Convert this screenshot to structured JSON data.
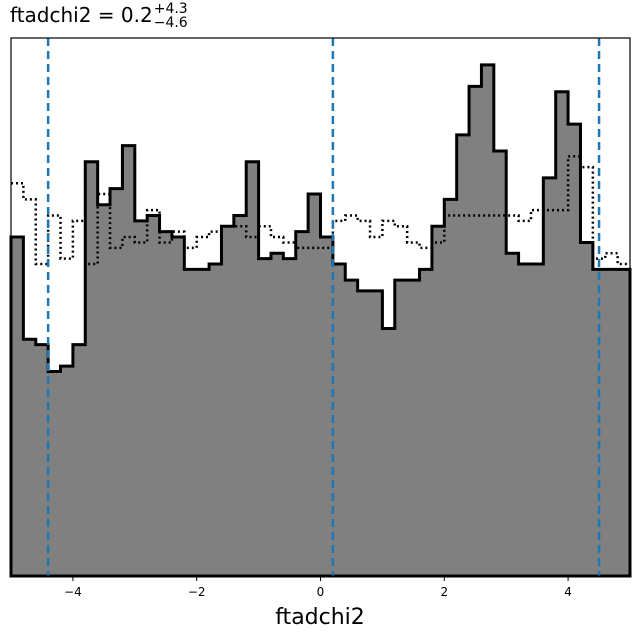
{
  "chart_data": {
    "type": "histogram",
    "title": {
      "text": "ftadchi2 = 0.2",
      "superscript": "+4.3",
      "subscript": "−4.6"
    },
    "xlabel": "ftadchi2",
    "ylabel": "",
    "xlim": [
      -5.0,
      5.0
    ],
    "ylim": [
      0,
      1.0
    ],
    "xticks": [
      -4,
      -2,
      0,
      2,
      4
    ],
    "xtick_labels": [
      "−4",
      "−2",
      "0",
      "2",
      "4"
    ],
    "show_yticks": false,
    "grid": false,
    "bin_edges": [
      -5.0,
      -4.8,
      -4.6,
      -4.4,
      -4.2,
      -4.0,
      -3.8,
      -3.6,
      -3.4,
      -3.2,
      -3.0,
      -2.8,
      -2.6,
      -2.4,
      -2.2,
      -2.0,
      -1.8,
      -1.6,
      -1.4,
      -1.2,
      -1.0,
      -0.8,
      -0.6,
      -0.4,
      -0.2,
      0.0,
      0.2,
      0.4,
      0.6,
      0.8,
      1.0,
      1.2,
      1.4,
      1.6,
      1.8,
      2.0,
      2.2,
      2.4,
      2.6,
      2.8,
      3.0,
      3.2,
      3.4,
      3.6,
      3.8,
      4.0,
      4.2,
      4.4,
      4.6,
      4.8,
      5.0
    ],
    "series": [
      {
        "style": "filled-step",
        "fill": "#808080",
        "edge": "#000000",
        "values": [
          0.63,
          0.44,
          0.43,
          0.38,
          0.39,
          0.43,
          0.77,
          0.69,
          0.72,
          0.8,
          0.66,
          0.67,
          0.64,
          0.63,
          0.57,
          0.57,
          0.58,
          0.65,
          0.67,
          0.77,
          0.59,
          0.6,
          0.59,
          0.64,
          0.71,
          0.63,
          0.58,
          0.55,
          0.53,
          0.53,
          0.46,
          0.55,
          0.55,
          0.57,
          0.65,
          0.7,
          0.82,
          0.91,
          0.95,
          0.79,
          0.6,
          0.58,
          0.58,
          0.74,
          0.9,
          0.84,
          0.62,
          0.57,
          0.57,
          0.57
        ]
      },
      {
        "style": "dotted-step",
        "edge": "#000000",
        "values": [
          0.73,
          0.7,
          0.58,
          0.67,
          0.59,
          0.66,
          0.58,
          0.71,
          0.61,
          0.63,
          0.62,
          0.68,
          0.62,
          0.64,
          0.61,
          0.63,
          0.64,
          0.65,
          0.65,
          0.63,
          0.65,
          0.63,
          0.62,
          0.61,
          0.61,
          0.61,
          0.66,
          0.67,
          0.66,
          0.63,
          0.66,
          0.65,
          0.62,
          0.61,
          0.62,
          0.67,
          0.67,
          0.67,
          0.67,
          0.67,
          0.67,
          0.66,
          0.68,
          0.68,
          0.68,
          0.78,
          0.76,
          0.59,
          0.6,
          0.58
        ]
      }
    ],
    "vlines": {
      "color": "#1f77b4",
      "style": "dashed",
      "x": [
        -4.4,
        0.2,
        4.5
      ]
    }
  }
}
